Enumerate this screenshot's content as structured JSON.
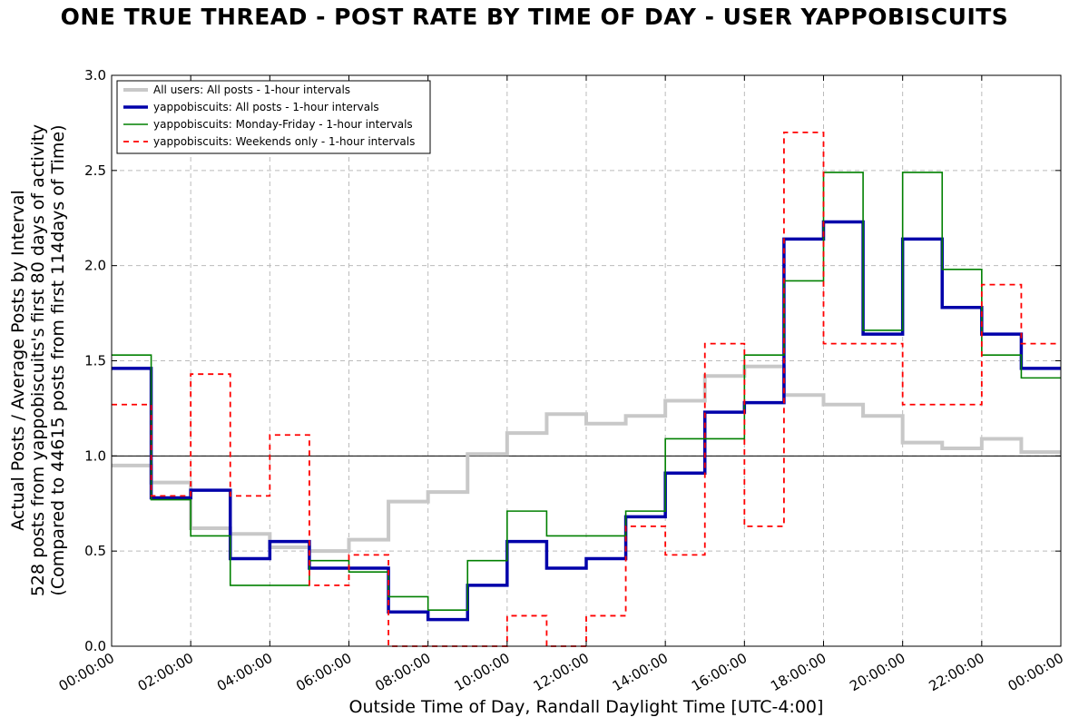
{
  "chart_data": {
    "type": "line",
    "title": "ONE TRUE THREAD - POST RATE BY TIME OF DAY - USER YAPPOBISCUITS",
    "xlabel": "Outside Time of Day, Randall Daylight Time [UTC-4:00]",
    "ylabel_lines": [
      "Actual Posts / Average Posts by Interval",
      "528 posts from yappobiscuits's first 80 days of activity",
      "(Compared to 44615 posts from first 114days of Time)"
    ],
    "xlim": [
      0,
      24
    ],
    "ylim": [
      0,
      3.0
    ],
    "x_tick_labels": [
      "00:00:00",
      "02:00:00",
      "04:00:00",
      "06:00:00",
      "08:00:00",
      "10:00:00",
      "12:00:00",
      "14:00:00",
      "16:00:00",
      "18:00:00",
      "20:00:00",
      "22:00:00",
      "00:00:00"
    ],
    "y_tick_labels": [
      "0.0",
      "0.5",
      "1.0",
      "1.5",
      "2.0",
      "2.5",
      "3.0"
    ],
    "grid": true,
    "reference_line": 1.0,
    "legend_position": "upper-left",
    "series": [
      {
        "name": "All users: All posts - 1-hour intervals",
        "color": "#c8c8c8",
        "style": "solid-thick",
        "values": [
          0.95,
          0.86,
          0.62,
          0.59,
          0.52,
          0.5,
          0.56,
          0.76,
          0.81,
          1.01,
          1.12,
          1.22,
          1.17,
          1.21,
          1.29,
          1.42,
          1.47,
          1.32,
          1.27,
          1.21,
          1.07,
          1.04,
          1.09,
          1.02
        ]
      },
      {
        "name": "yappobiscuits: All posts - 1-hour intervals",
        "color": "#0000aa",
        "style": "solid-bold",
        "values": [
          1.46,
          0.78,
          0.82,
          0.46,
          0.55,
          0.41,
          0.41,
          0.18,
          0.14,
          0.32,
          0.55,
          0.41,
          0.46,
          0.68,
          0.91,
          1.23,
          1.28,
          2.14,
          2.23,
          1.64,
          2.14,
          1.78,
          1.64,
          1.46
        ]
      },
      {
        "name": "yappobiscuits: Monday-Friday - 1-hour intervals",
        "color": "#008000",
        "style": "solid",
        "values": [
          1.53,
          0.77,
          0.58,
          0.32,
          0.32,
          0.45,
          0.39,
          0.26,
          0.19,
          0.45,
          0.71,
          0.58,
          0.58,
          0.71,
          1.09,
          1.09,
          1.53,
          1.92,
          2.49,
          1.66,
          2.49,
          1.98,
          1.53,
          1.41
        ]
      },
      {
        "name": "yappobiscuits: Weekends only - 1-hour intervals",
        "color": "#ff0000",
        "style": "dashed",
        "values": [
          1.27,
          0.79,
          1.43,
          0.79,
          1.11,
          0.32,
          0.48,
          0.0,
          0.0,
          0.0,
          0.16,
          0.0,
          0.16,
          0.63,
          0.48,
          1.59,
          0.63,
          2.7,
          1.59,
          1.59,
          1.27,
          1.27,
          1.9,
          1.59
        ]
      }
    ]
  }
}
